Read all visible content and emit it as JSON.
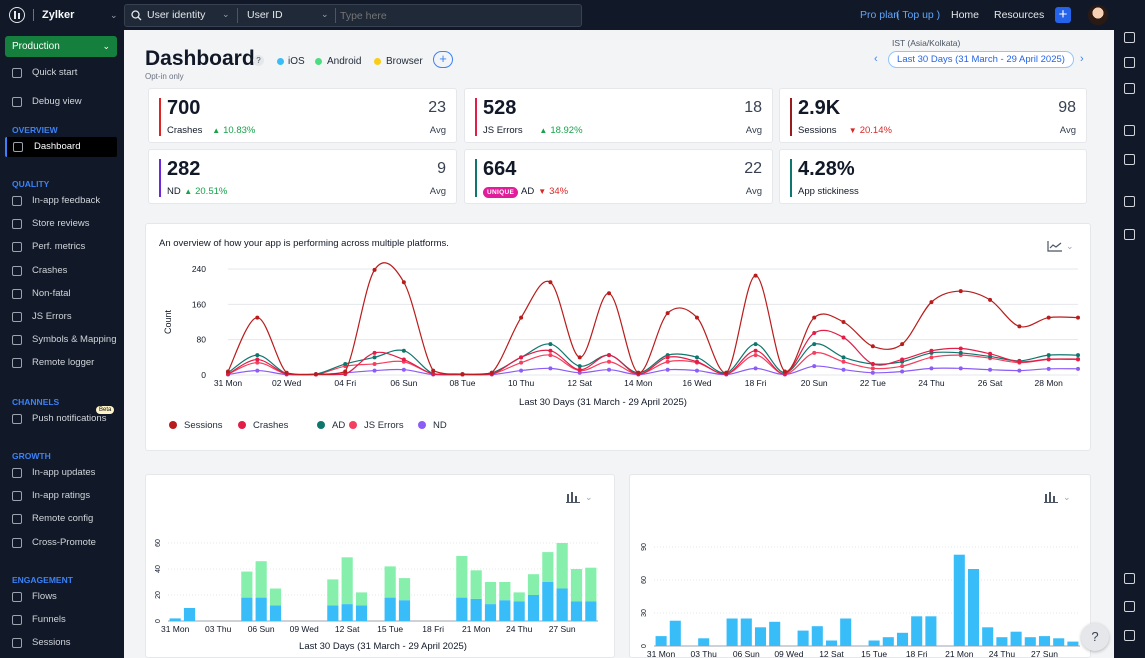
{
  "app": {
    "name": "Zylker"
  },
  "search": {
    "filter1": "User identity",
    "filter2": "User ID",
    "placeholder": "Type here"
  },
  "topnav": {
    "plan": "Pro plan",
    "topup": "( Top up )",
    "home": "Home",
    "resources": "Resources"
  },
  "sidebar": {
    "environment": "Production",
    "top_items": [
      {
        "label": "Quick start",
        "icon": "rocket-icon"
      },
      {
        "label": "Debug view",
        "icon": "pin-icon"
      }
    ],
    "sections": [
      {
        "title": "OVERVIEW",
        "items": [
          {
            "label": "Dashboard",
            "icon": "dashboard-icon",
            "active": true
          }
        ]
      },
      {
        "title": "QUALITY",
        "items": [
          {
            "label": "In-app feedback",
            "icon": "feedback-icon"
          },
          {
            "label": "Store reviews",
            "icon": "review-icon"
          },
          {
            "label": "Perf. metrics",
            "icon": "pulse-icon"
          },
          {
            "label": "Crashes",
            "icon": "crash-icon"
          },
          {
            "label": "Non-fatal",
            "icon": "braces-icon"
          },
          {
            "label": "JS Errors",
            "icon": "js-icon"
          },
          {
            "label": "Symbols & Mapping",
            "icon": "layers-icon"
          },
          {
            "label": "Remote logger",
            "icon": "logger-icon"
          }
        ]
      },
      {
        "title": "CHANNELS",
        "items": [
          {
            "label": "Push notifications",
            "icon": "bell-icon",
            "badge": "Beta"
          }
        ]
      },
      {
        "title": "GROWTH",
        "items": [
          {
            "label": "In-app updates",
            "icon": "upload-icon"
          },
          {
            "label": "In-app ratings",
            "icon": "star-icon"
          },
          {
            "label": "Remote config",
            "icon": "config-icon"
          },
          {
            "label": "Cross-Promote",
            "icon": "grid-icon"
          }
        ]
      },
      {
        "title": "ENGAGEMENT",
        "items": [
          {
            "label": "Flows",
            "icon": "flow-icon"
          },
          {
            "label": "Funnels",
            "icon": "funnel-icon"
          },
          {
            "label": "Sessions",
            "icon": "sessions-icon"
          }
        ]
      }
    ]
  },
  "header": {
    "title": "Dashboard",
    "help": "?",
    "optin": "Opt-in only",
    "platforms": [
      {
        "name": "iOS",
        "color": "#38bdf8"
      },
      {
        "name": "Android",
        "color": "#4ade80"
      },
      {
        "name": "Browser",
        "color": "#facc15"
      }
    ],
    "add": "+",
    "timezone": "IST (Asia/Kolkata)",
    "date_range": "Last 30 Days (31 March - 29 April 2025)",
    "prev": "‹",
    "next": "›"
  },
  "kpis": [
    {
      "value": "700",
      "label": "Crashes",
      "change": "10.83%",
      "dir": "up",
      "avg": "23",
      "avg_label": "Avg",
      "color": "#dc2626"
    },
    {
      "value": "528",
      "label": "JS Errors",
      "change": "18.92%",
      "dir": "up",
      "avg": "18",
      "avg_label": "Avg",
      "color": "#e11d48"
    },
    {
      "value": "2.9K",
      "label": "Sessions",
      "change": "20.14%",
      "dir": "down",
      "avg": "98",
      "avg_label": "Avg",
      "color": "#991b1b"
    },
    {
      "value": "282",
      "label": "ND",
      "change": "20.51%",
      "dir": "up",
      "avg": "9",
      "avg_label": "Avg",
      "color": "#6d28d9"
    },
    {
      "value": "664",
      "label": "AD",
      "badge": "UNIQUE",
      "change": "34%",
      "dir": "down",
      "avg": "22",
      "avg_label": "Avg",
      "color": "#0f766e"
    },
    {
      "value": "4.28%",
      "label": "App stickiness",
      "color": "#0f766e"
    }
  ],
  "chart_data": [
    {
      "type": "line",
      "title": "An overview of how your app is performing across multiple platforms.",
      "xlabel": "Last 30 Days (31 March - 29 April 2025)",
      "ylabel": "Count",
      "ylim": [
        0,
        240
      ],
      "yticks": [
        0,
        80,
        160,
        240
      ],
      "x": [
        "31 Mon",
        "01 Tue",
        "02 Wed",
        "03 Thu",
        "04 Fri",
        "05 Sat",
        "06 Sun",
        "07 Mon",
        "08 Tue",
        "09 Wed",
        "10 Thu",
        "11 Fri",
        "12 Sat",
        "13 Sun",
        "14 Mon",
        "15 Tue",
        "16 Wed",
        "17 Thu",
        "18 Fri",
        "19 Sat",
        "20 Sun",
        "21 Mon",
        "22 Tue",
        "23 Wed",
        "24 Thu",
        "25 Fri",
        "26 Sat",
        "27 Sun",
        "28 Mon",
        "29 Tue"
      ],
      "xticks": [
        "31 Mon",
        "02 Wed",
        "04 Fri",
        "06 Sun",
        "08 Tue",
        "10 Thu",
        "12 Sat",
        "14 Mon",
        "16 Wed",
        "18 Fri",
        "20 Sun",
        "22 Tue",
        "24 Thu",
        "26 Sat",
        "28 Mon"
      ],
      "series": [
        {
          "name": "Sessions",
          "color": "#b91c1c",
          "values": [
            8,
            130,
            5,
            2,
            8,
            238,
            210,
            10,
            2,
            5,
            130,
            210,
            40,
            185,
            5,
            140,
            130,
            5,
            225,
            8,
            130,
            120,
            65,
            70,
            165,
            190,
            170,
            110,
            130,
            130
          ]
        },
        {
          "name": "Crashes",
          "color": "#e11d48",
          "values": [
            2,
            35,
            2,
            1,
            2,
            50,
            35,
            2,
            1,
            2,
            40,
            55,
            12,
            45,
            2,
            40,
            30,
            2,
            55,
            2,
            95,
            85,
            25,
            35,
            55,
            60,
            48,
            30,
            36,
            36
          ]
        },
        {
          "name": "AD",
          "color": "#0f766e",
          "values": [
            5,
            45,
            3,
            2,
            25,
            40,
            55,
            3,
            2,
            5,
            40,
            70,
            20,
            45,
            5,
            45,
            40,
            5,
            70,
            5,
            70,
            40,
            25,
            30,
            50,
            50,
            42,
            32,
            45,
            45
          ]
        },
        {
          "name": "JS Errors",
          "color": "#f43f5e",
          "values": [
            2,
            28,
            2,
            1,
            20,
            25,
            30,
            2,
            1,
            2,
            28,
            45,
            10,
            30,
            2,
            30,
            28,
            2,
            45,
            2,
            50,
            30,
            15,
            20,
            40,
            45,
            38,
            28,
            35,
            35
          ]
        },
        {
          "name": "ND",
          "color": "#8b5cf6",
          "values": [
            1,
            10,
            1,
            1,
            5,
            10,
            12,
            1,
            1,
            1,
            10,
            15,
            5,
            12,
            1,
            12,
            10,
            1,
            15,
            1,
            20,
            12,
            5,
            8,
            15,
            15,
            12,
            10,
            14,
            14
          ]
        }
      ]
    },
    {
      "type": "bar",
      "stacked": true,
      "xlabel": "Last 30 Days (31 March - 29 April 2025)",
      "ylim": [
        0,
        60
      ],
      "yticks": [
        0,
        20,
        40,
        60
      ],
      "categories": [
        "31 Mon",
        "01 Tue",
        "02 Wed",
        "03 Thu",
        "04 Fri",
        "05 Sat",
        "06 Sun",
        "07 Mon",
        "08 Tue",
        "09 Wed",
        "10 Thu",
        "11 Fri",
        "12 Sat",
        "13 Sun",
        "14 Mon",
        "15 Tue",
        "16 Wed",
        "17 Thu",
        "18 Fri",
        "19 Sat",
        "20 Sun",
        "21 Mon",
        "22 Tue",
        "23 Wed",
        "24 Thu",
        "25 Fri",
        "26 Sat",
        "27 Sun",
        "28 Mon",
        "29 Tue"
      ],
      "xticks": [
        "31 Mon",
        "03 Thu",
        "06 Sun",
        "09 Wed",
        "12 Sat",
        "15 Tue",
        "18 Fri",
        "21 Mon",
        "24 Thu",
        "27 Sun"
      ],
      "series": [
        {
          "name": "iOS",
          "color": "#38bdf8",
          "values": [
            2,
            10,
            0,
            0,
            0,
            18,
            18,
            12,
            0,
            0,
            0,
            12,
            13,
            12,
            0,
            18,
            16,
            0,
            0,
            0,
            18,
            17,
            13,
            16,
            15,
            20,
            30,
            25,
            15,
            15
          ]
        },
        {
          "name": "Android",
          "color": "#86efac",
          "values": [
            0,
            0,
            0,
            0,
            0,
            20,
            28,
            13,
            0,
            0,
            0,
            20,
            36,
            10,
            0,
            24,
            17,
            0,
            0,
            0,
            32,
            22,
            17,
            14,
            7,
            16,
            23,
            35,
            25,
            26
          ]
        }
      ]
    },
    {
      "type": "bar",
      "xlabel": "",
      "ylim": [
        0,
        90
      ],
      "yticks": [
        0,
        30,
        60,
        90
      ],
      "categories": [
        "31 Mon",
        "01 Tue",
        "02 Wed",
        "03 Thu",
        "04 Fri",
        "05 Sat",
        "06 Sun",
        "07 Mon",
        "08 Tue",
        "09 Wed",
        "10 Thu",
        "11 Fri",
        "12 Sat",
        "13 Sun",
        "14 Mon",
        "15 Tue",
        "16 Wed",
        "17 Thu",
        "18 Fri",
        "19 Sat",
        "20 Sun",
        "21 Mon",
        "22 Tue",
        "23 Wed",
        "24 Thu",
        "25 Fri",
        "26 Sat",
        "27 Sun",
        "28 Mon",
        "29 Tue"
      ],
      "xticks": [
        "31 Mon",
        "03 Thu",
        "06 Sun",
        "09 Wed",
        "12 Sat",
        "15 Tue",
        "18 Fri",
        "21 Mon",
        "24 Thu",
        "27 Sun"
      ],
      "series": [
        {
          "name": "Browser",
          "color": "#38bdf8",
          "values": [
            9,
            23,
            0,
            7,
            0,
            25,
            25,
            17,
            22,
            0,
            14,
            18,
            5,
            25,
            0,
            5,
            8,
            12,
            27,
            27,
            0,
            83,
            70,
            17,
            8,
            13,
            8,
            9,
            7,
            4
          ]
        }
      ]
    }
  ],
  "rightbar": {
    "icons": [
      "users-icon",
      "swap-icon",
      "code-icon",
      "device-icon",
      "doc-icon",
      "apple-icon",
      "play-icon",
      "chat-icon",
      "theme-icon",
      "list-icon"
    ]
  },
  "help": {
    "label": "?"
  }
}
